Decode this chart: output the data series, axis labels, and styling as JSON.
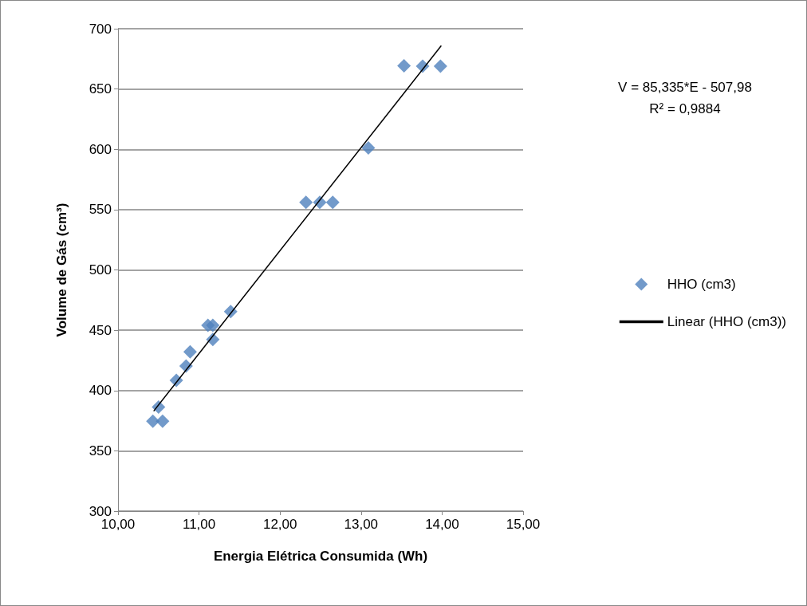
{
  "chart_data": {
    "type": "scatter",
    "xlabel": "Energia Elétrica Consumida (Wh)",
    "ylabel": "Volume de Gás (cm³)",
    "x": [
      10.43,
      10.55,
      10.5,
      10.72,
      10.84,
      10.89,
      11.11,
      11.17,
      11.17,
      11.39,
      12.32,
      12.49,
      12.65,
      13.09,
      13.53,
      13.76,
      13.98
    ],
    "series": [
      {
        "name": "HHO (cm3)",
        "color": "#4f81bd",
        "marker": "diamond",
        "values": [
          374.5,
          374.5,
          386.3,
          408.5,
          420.4,
          432,
          454,
          454,
          442.3,
          465.4,
          556,
          556,
          556,
          601.2,
          669.2,
          669,
          669
        ]
      },
      {
        "name": "Linear (HHO (cm3))",
        "type": "line",
        "color": "#000000",
        "marker": "none",
        "x": [
          10.44,
          13.99
        ],
        "values": [
          382.9,
          685.9
        ]
      }
    ],
    "xlim": [
      10,
      15
    ],
    "xticks": [
      {
        "value": 10,
        "label": "10,00"
      },
      {
        "value": 11,
        "label": "11,00"
      },
      {
        "value": 12,
        "label": "12,00"
      },
      {
        "value": 13,
        "label": "13,00"
      },
      {
        "value": 14,
        "label": "14,00"
      },
      {
        "value": 15,
        "label": "15,00"
      }
    ],
    "ylim": [
      300,
      700
    ],
    "yticks": [
      300,
      350,
      400,
      450,
      500,
      550,
      600,
      650,
      700
    ],
    "grid": "y",
    "legend": "right",
    "annotations": [
      "V = 85,335*E - 507,98",
      "R² = 0,9884"
    ]
  }
}
